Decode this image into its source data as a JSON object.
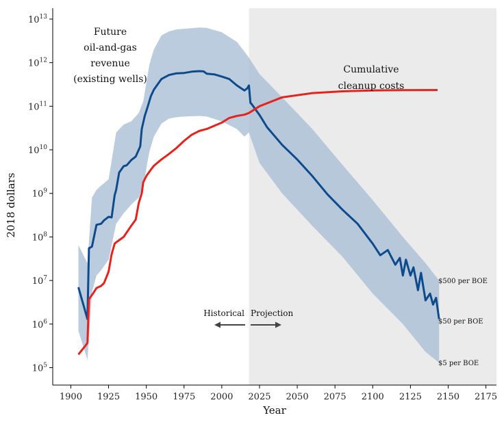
{
  "chart_data": {
    "type": "area",
    "xlabel": "Year",
    "ylabel": "2018 dollars",
    "xlim": [
      1888,
      2182
    ],
    "ylim_log10": [
      4.6,
      13.25
    ],
    "y_scale": "log",
    "x_ticks": [
      1900,
      1925,
      1950,
      1975,
      2000,
      2025,
      2050,
      2075,
      2100,
      2125,
      2150,
      2175
    ],
    "y_ticks": [
      {
        "base": "10",
        "exp": "5",
        "value": 100000
      },
      {
        "base": "10",
        "exp": "6",
        "value": 1000000
      },
      {
        "base": "10",
        "exp": "7",
        "value": 10000000
      },
      {
        "base": "10",
        "exp": "8",
        "value": 100000000
      },
      {
        "base": "10",
        "exp": "9",
        "value": 1000000000
      },
      {
        "base": "10",
        "exp": "10",
        "value": 10000000000
      },
      {
        "base": "10",
        "exp": "11",
        "value": 100000000000
      },
      {
        "base": "10",
        "exp": "12",
        "value": 1000000000000
      },
      {
        "base": "10",
        "exp": "13",
        "value": 10000000000000
      }
    ],
    "projection_start": 2018,
    "colors": {
      "revenue": "#0d4a8c",
      "band": "#a9bfd6",
      "cleanup": "#e8221a",
      "projection_bg": "#ebebeb"
    },
    "series": [
      {
        "name": "revenue_median",
        "x": [
          1905,
          1911,
          1912,
          1914,
          1917,
          1920,
          1922,
          1925,
          1927,
          1929,
          1930,
          1932,
          1935,
          1937,
          1940,
          1943,
          1946,
          1947,
          1949,
          1951,
          1953,
          1955,
          1960,
          1965,
          1970,
          1975,
          1980,
          1985,
          1988,
          1990,
          1995,
          2000,
          2005,
          2010,
          2015,
          2017,
          2018,
          2019,
          2020,
          2025,
          2030,
          2040,
          2050,
          2060,
          2070,
          2080,
          2090,
          2100,
          2105,
          2110,
          2115,
          2118,
          2120,
          2122,
          2125,
          2127,
          2130,
          2132,
          2135,
          2138,
          2140,
          2142,
          2144
        ],
        "y": [
          7000000,
          1300000,
          55000000,
          60000000,
          190000000,
          200000000,
          240000000,
          290000000,
          280000000,
          900000000,
          1200000000,
          3000000000,
          4200000000,
          4400000000,
          5800000000,
          7000000000,
          12000000000,
          30000000000,
          60000000000,
          100000000000,
          170000000000,
          240000000000,
          420000000000,
          520000000000,
          570000000000,
          580000000000,
          620000000000,
          640000000000,
          630000000000,
          560000000000,
          540000000000,
          480000000000,
          420000000000,
          300000000000,
          230000000000,
          260000000000,
          300000000000,
          120000000000,
          110000000000,
          63000000000,
          33000000000,
          13000000000,
          6000000000,
          2500000000,
          950000000,
          420000000,
          200000000,
          70000000,
          38000000,
          50000000,
          23000000,
          33000000,
          13000000,
          30000000,
          13000000,
          20000000,
          6000000,
          15000000,
          3500000,
          5000000,
          2800000,
          4000000,
          1300000
        ]
      },
      {
        "name": "revenue_high",
        "x": [
          1905,
          1911,
          1914,
          1917,
          1920,
          1925,
          1930,
          1935,
          1940,
          1945,
          1948,
          1952,
          1955,
          1960,
          1965,
          1970,
          1975,
          1985,
          1990,
          2000,
          2010,
          2015,
          2018,
          2025,
          2040,
          2060,
          2080,
          2100,
          2120,
          2135,
          2144
        ],
        "y": [
          65000000,
          25000000,
          800000000,
          1200000000,
          1500000000,
          2100000000,
          25000000000,
          38000000000,
          45000000000,
          70000000000,
          130000000000,
          900000000000,
          2000000000000,
          4200000000000,
          5200000000000,
          5800000000000,
          6000000000000,
          6400000000000,
          6300000000000,
          5000000000000,
          3000000000000,
          1800000000000,
          1300000000000,
          550000000000,
          160000000000,
          30000000000,
          4500000000,
          700000000,
          100000000,
          25000000,
          10000000
        ]
      },
      {
        "name": "revenue_low",
        "x": [
          1905,
          1911,
          1914,
          1917,
          1920,
          1925,
          1930,
          1935,
          1940,
          1945,
          1948,
          1952,
          1955,
          1960,
          1965,
          1970,
          1975,
          1985,
          1990,
          2000,
          2010,
          2015,
          2018,
          2025,
          2040,
          2060,
          2080,
          2100,
          2120,
          2135,
          2144
        ],
        "y": [
          700000,
          150000,
          5500000,
          13000000,
          17000000,
          30000000,
          200000000,
          350000000,
          550000000,
          800000000,
          1500000000,
          9000000000,
          20000000000,
          40000000000,
          52000000000,
          56000000000,
          58000000000,
          60000000000,
          58000000000,
          45000000000,
          30000000000,
          20000000000,
          25000000000,
          5000000000,
          1000000000,
          180000000,
          35000000,
          5000000,
          1000000,
          230000,
          130000
        ]
      },
      {
        "name": "cleanup_costs",
        "x": [
          1905,
          1910,
          1911,
          1912,
          1915,
          1917,
          1920,
          1922,
          1925,
          1927,
          1929,
          1930,
          1935,
          1940,
          1943,
          1945,
          1947,
          1948,
          1950,
          1953,
          1955,
          1960,
          1965,
          1970,
          1975,
          1980,
          1985,
          1990,
          2000,
          2005,
          2010,
          2015,
          2018,
          2025,
          2040,
          2060,
          2080,
          2100,
          2120,
          2143
        ],
        "y": [
          200000,
          330000,
          370000,
          3700000,
          5200000,
          6700000,
          7500000,
          8700000,
          16000000,
          40000000,
          70000000,
          75000000,
          100000000,
          180000000,
          250000000,
          600000000,
          1000000000,
          1800000000,
          2500000000,
          3500000000,
          4300000000,
          6000000000,
          8000000000,
          11000000000,
          16000000000,
          22000000000,
          27000000000,
          30000000000,
          42000000000,
          54000000000,
          60000000000,
          64000000000,
          70000000000,
          100000000000,
          160000000000,
          200000000000,
          220000000000,
          230000000000,
          235000000000,
          236000000000
        ]
      }
    ]
  },
  "annotations": {
    "revenue_label": [
      "Future",
      "oil-and-gas",
      "revenue",
      "(existing wells)"
    ],
    "cleanup_label": [
      "Cumulative",
      "cleanup costs"
    ],
    "historical": "Historical",
    "projection": "Projection",
    "boe_500": "$500 per BOE",
    "boe_50": "$50 per BOE",
    "boe_5": "$5 per BOE"
  }
}
